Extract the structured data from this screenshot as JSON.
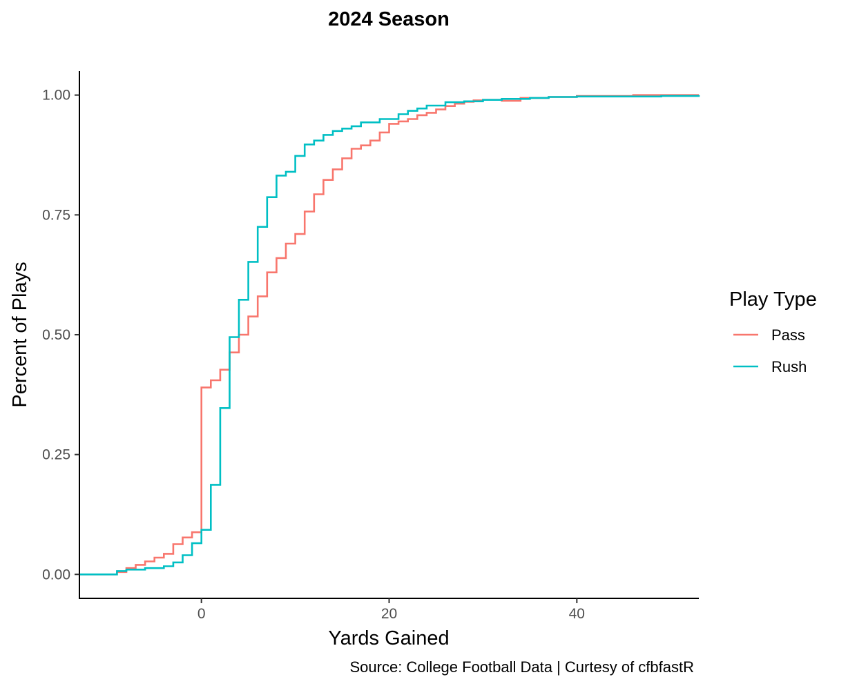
{
  "chart_data": {
    "type": "line",
    "subtype": "step-ecdf",
    "title": "2024 Season",
    "xlabel": "Yards Gained",
    "ylabel": "Percent of Plays",
    "caption": "Source: College Football Data | Curtesy of cfbfastR",
    "xlim": [
      -13,
      53
    ],
    "ylim": [
      -0.05,
      1.05
    ],
    "x_ticks": [
      0,
      20,
      40
    ],
    "x_tick_labels": [
      "0",
      "20",
      "40"
    ],
    "y_ticks": [
      0,
      0.25,
      0.5,
      0.75,
      1.0
    ],
    "y_tick_labels": [
      "0.00",
      "0.25",
      "0.50",
      "0.75",
      "1.00"
    ],
    "grid": false,
    "legend": {
      "title": "Play Type",
      "position": "right"
    },
    "series": [
      {
        "name": "Pass",
        "color": "#F8766D",
        "x": [
          -13,
          -9,
          -8,
          -7,
          -6,
          -5,
          -4,
          -3,
          -2,
          -1,
          0,
          1,
          2,
          3,
          4,
          5,
          6,
          7,
          8,
          9,
          10,
          11,
          12,
          13,
          14,
          15,
          16,
          17,
          18,
          19,
          20,
          21,
          22,
          23,
          24,
          25,
          26,
          27,
          28,
          29,
          30,
          32,
          34,
          37,
          40,
          46,
          49,
          53
        ],
        "y": [
          0,
          0.005,
          0.013,
          0.02,
          0.027,
          0.035,
          0.043,
          0.063,
          0.077,
          0.088,
          0.39,
          0.405,
          0.427,
          0.463,
          0.5,
          0.538,
          0.58,
          0.63,
          0.66,
          0.69,
          0.71,
          0.757,
          0.793,
          0.823,
          0.845,
          0.868,
          0.888,
          0.895,
          0.905,
          0.922,
          0.94,
          0.945,
          0.95,
          0.958,
          0.963,
          0.97,
          0.977,
          0.982,
          0.986,
          0.989,
          0.99,
          0.988,
          0.994,
          0.996,
          0.998,
          1.0,
          1.0,
          1.0
        ]
      },
      {
        "name": "Rush",
        "color": "#00BFC4",
        "x": [
          -13,
          -9,
          -8,
          -6,
          -4,
          -3,
          -2,
          -1,
          0,
          1,
          2,
          3,
          4,
          5,
          6,
          7,
          8,
          9,
          10,
          11,
          12,
          13,
          14,
          15,
          16,
          17,
          19,
          21,
          22,
          23,
          24,
          26,
          28,
          30,
          32,
          35,
          37,
          40,
          49,
          53
        ],
        "y": [
          0,
          0.007,
          0.01,
          0.013,
          0.017,
          0.025,
          0.04,
          0.065,
          0.093,
          0.187,
          0.347,
          0.495,
          0.573,
          0.652,
          0.725,
          0.787,
          0.832,
          0.84,
          0.873,
          0.897,
          0.905,
          0.917,
          0.925,
          0.93,
          0.935,
          0.943,
          0.95,
          0.96,
          0.967,
          0.972,
          0.978,
          0.985,
          0.987,
          0.99,
          0.992,
          0.994,
          0.996,
          0.997,
          0.998,
          1.0
        ]
      }
    ]
  }
}
